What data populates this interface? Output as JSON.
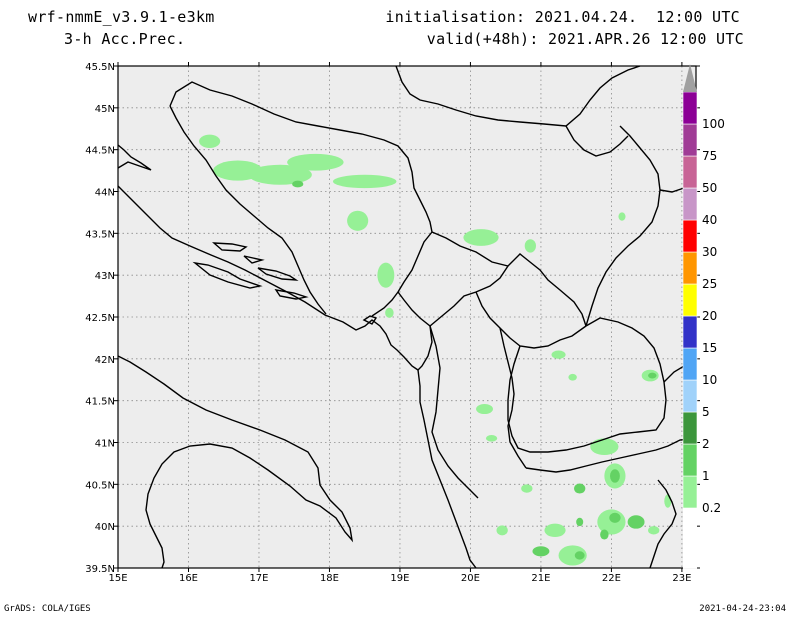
{
  "header": {
    "model": "wrf-nmmE_v3.9.1-e3km",
    "field": "3-h Acc.Prec.",
    "initialisation": "initialisation: 2021.04.24.  12:00 UTC",
    "valid": "valid(+48h): 2021.APR.26 12:00 UTC"
  },
  "footer": {
    "software": "GrADS: COLA/IGES",
    "timestamp": "2021-04-24-23:04"
  },
  "map": {
    "lon_range": [
      15,
      23.2
    ],
    "lat_range": [
      39.5,
      45.5
    ],
    "grid": true,
    "background_color": "#ededed",
    "lon_ticks": [
      {
        "value": 15,
        "label": "15E"
      },
      {
        "value": 16,
        "label": "16E"
      },
      {
        "value": 17,
        "label": "17E"
      },
      {
        "value": 18,
        "label": "18E"
      },
      {
        "value": 19,
        "label": "19E"
      },
      {
        "value": 20,
        "label": "20E"
      },
      {
        "value": 21,
        "label": "21E"
      },
      {
        "value": 22,
        "label": "22E"
      },
      {
        "value": 23,
        "label": "23E"
      }
    ],
    "lat_ticks": [
      {
        "value": 39.5,
        "label": "39.5N"
      },
      {
        "value": 40,
        "label": "40N"
      },
      {
        "value": 40.5,
        "label": "40.5N"
      },
      {
        "value": 41,
        "label": "41N"
      },
      {
        "value": 41.5,
        "label": "41.5N"
      },
      {
        "value": 42,
        "label": "42N"
      },
      {
        "value": 42.5,
        "label": "42.5N"
      },
      {
        "value": 43,
        "label": "43N"
      },
      {
        "value": 43.5,
        "label": "43.5N"
      },
      {
        "value": 44,
        "label": "44N"
      },
      {
        "value": 44.5,
        "label": "44.5N"
      },
      {
        "value": 45,
        "label": "45N"
      },
      {
        "value": 45.5,
        "label": "45.5N"
      }
    ],
    "precip_patches": [
      {
        "lon": 16.3,
        "lat": 44.6,
        "rx": 0.15,
        "ry": 0.08,
        "level": 0
      },
      {
        "lon": 16.7,
        "lat": 44.25,
        "rx": 0.35,
        "ry": 0.12,
        "level": 0
      },
      {
        "lon": 17.3,
        "lat": 44.2,
        "rx": 0.45,
        "ry": 0.12,
        "level": 0
      },
      {
        "lon": 17.55,
        "lat": 44.09,
        "rx": 0.08,
        "ry": 0.04,
        "level": 1
      },
      {
        "lon": 17.8,
        "lat": 44.35,
        "rx": 0.4,
        "ry": 0.1,
        "level": 0
      },
      {
        "lon": 18.5,
        "lat": 44.12,
        "rx": 0.45,
        "ry": 0.08,
        "level": 0
      },
      {
        "lon": 18.4,
        "lat": 43.65,
        "rx": 0.15,
        "ry": 0.12,
        "level": 0
      },
      {
        "lon": 18.8,
        "lat": 43.0,
        "rx": 0.12,
        "ry": 0.15,
        "level": 0
      },
      {
        "lon": 18.85,
        "lat": 42.55,
        "rx": 0.06,
        "ry": 0.06,
        "level": 0
      },
      {
        "lon": 20.15,
        "lat": 43.45,
        "rx": 0.25,
        "ry": 0.1,
        "level": 0
      },
      {
        "lon": 20.85,
        "lat": 43.35,
        "rx": 0.08,
        "ry": 0.08,
        "level": 0
      },
      {
        "lon": 22.15,
        "lat": 43.7,
        "rx": 0.05,
        "ry": 0.05,
        "level": 0
      },
      {
        "lon": 23.1,
        "lat": 43.1,
        "rx": 0.08,
        "ry": 0.08,
        "level": 0
      },
      {
        "lon": 21.25,
        "lat": 42.05,
        "rx": 0.1,
        "ry": 0.05,
        "level": 0
      },
      {
        "lon": 22.55,
        "lat": 41.8,
        "rx": 0.12,
        "ry": 0.07,
        "level": 0
      },
      {
        "lon": 22.58,
        "lat": 41.8,
        "rx": 0.06,
        "ry": 0.035,
        "level": 1
      },
      {
        "lon": 21.45,
        "lat": 41.78,
        "rx": 0.06,
        "ry": 0.04,
        "level": 0
      },
      {
        "lon": 20.2,
        "lat": 41.4,
        "rx": 0.12,
        "ry": 0.06,
        "level": 0
      },
      {
        "lon": 20.3,
        "lat": 41.05,
        "rx": 0.08,
        "ry": 0.04,
        "level": 0
      },
      {
        "lon": 21.9,
        "lat": 40.95,
        "rx": 0.2,
        "ry": 0.1,
        "level": 0
      },
      {
        "lon": 22.05,
        "lat": 40.6,
        "rx": 0.15,
        "ry": 0.15,
        "level": 0
      },
      {
        "lon": 22.05,
        "lat": 40.6,
        "rx": 0.07,
        "ry": 0.08,
        "level": 1
      },
      {
        "lon": 21.55,
        "lat": 40.45,
        "rx": 0.08,
        "ry": 0.06,
        "level": 1
      },
      {
        "lon": 20.8,
        "lat": 40.45,
        "rx": 0.08,
        "ry": 0.05,
        "level": 0
      },
      {
        "lon": 22.0,
        "lat": 40.05,
        "rx": 0.2,
        "ry": 0.15,
        "level": 0
      },
      {
        "lon": 22.05,
        "lat": 40.1,
        "rx": 0.08,
        "ry": 0.06,
        "level": 1
      },
      {
        "lon": 22.35,
        "lat": 40.05,
        "rx": 0.12,
        "ry": 0.08,
        "level": 1
      },
      {
        "lon": 21.9,
        "lat": 39.9,
        "rx": 0.06,
        "ry": 0.06,
        "level": 1
      },
      {
        "lon": 20.45,
        "lat": 39.95,
        "rx": 0.08,
        "ry": 0.06,
        "level": 0
      },
      {
        "lon": 21.2,
        "lat": 39.95,
        "rx": 0.15,
        "ry": 0.08,
        "level": 0
      },
      {
        "lon": 21.0,
        "lat": 39.7,
        "rx": 0.12,
        "ry": 0.06,
        "level": 1
      },
      {
        "lon": 21.45,
        "lat": 39.65,
        "rx": 0.2,
        "ry": 0.12,
        "level": 0
      },
      {
        "lon": 21.55,
        "lat": 39.65,
        "rx": 0.07,
        "ry": 0.05,
        "level": 1
      },
      {
        "lon": 22.6,
        "lat": 39.95,
        "rx": 0.08,
        "ry": 0.05,
        "level": 0
      },
      {
        "lon": 22.8,
        "lat": 40.3,
        "rx": 0.05,
        "ry": 0.08,
        "level": 0
      },
      {
        "lon": 21.55,
        "lat": 40.05,
        "rx": 0.05,
        "ry": 0.05,
        "level": 1
      }
    ]
  },
  "legend": {
    "colors": [
      "#96f096",
      "#64d264",
      "#3c963c",
      "#a0d2fa",
      "#50a5f5",
      "#3232c8",
      "#2020b8",
      "#ffff00",
      "#ff9600",
      "#ff0000",
      "#c896c8",
      "#c86496",
      "#a03c96",
      "#8c0096",
      "#a0a0a0"
    ],
    "labels": [
      "0.2",
      "1",
      "2",
      "5",
      "10",
      "15",
      "20",
      "25",
      "30",
      "40",
      "50",
      "75",
      "100"
    ]
  }
}
